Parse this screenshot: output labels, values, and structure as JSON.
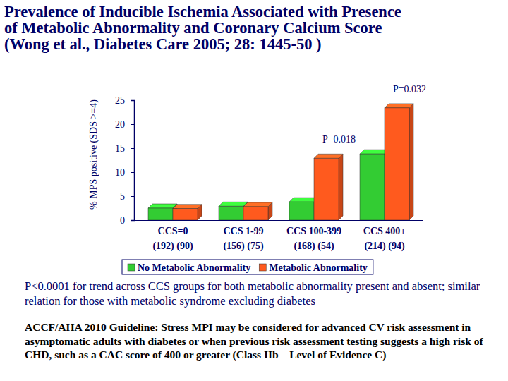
{
  "chart_data": {
    "type": "bar",
    "title": [
      "Prevalence of Inducible Ischemia Associated with Presence",
      "of Metabolic Abnormality and Coronary Calcium Score",
      "(Wong et al., Diabetes Care 2005; 28: 1445-50 )"
    ],
    "y_label": "% MPS positive (SDS >=4)",
    "categories": [
      "CCS=0",
      "CCS 1-99",
      "CCS 100-399",
      "CCS 400+"
    ],
    "category_counts": [
      "(192) (90)",
      "(156) (75)",
      "(168) (54)",
      "(214) (94)"
    ],
    "series": [
      {
        "name": "No Metabolic Abnormality",
        "color": "#33cc33",
        "values": [
          2.5,
          2.9,
          3.8,
          13.8
        ]
      },
      {
        "name": "Metabolic Abnormality",
        "color": "#ff5a1e",
        "values": [
          2.4,
          2.8,
          12.9,
          23.4
        ]
      }
    ],
    "ylim": [
      0,
      25
    ],
    "yticks": [
      0,
      5,
      10,
      15,
      20,
      25
    ],
    "grid": false,
    "legend": "bottom",
    "annotations": [
      {
        "text": "P=0.018",
        "category": "CCS 100-399"
      },
      {
        "text": "P=0.032",
        "category": "CCS 400+"
      }
    ],
    "notes": [
      "P<0.0001 for trend across CCS groups for both metabolic abnormality present and absent; similar relation for those with metabolic syndrome excluding diabetes",
      "ACCF/AHA 2010 Guideline: Stress MPI may be considered for advanced CV risk assessment in asymptomatic adults with diabetes or when previous risk assessment testing suggests a high risk of CHD, such as a CAC score of 400 or greater (Class IIb – Level of Evidence C)"
    ]
  }
}
